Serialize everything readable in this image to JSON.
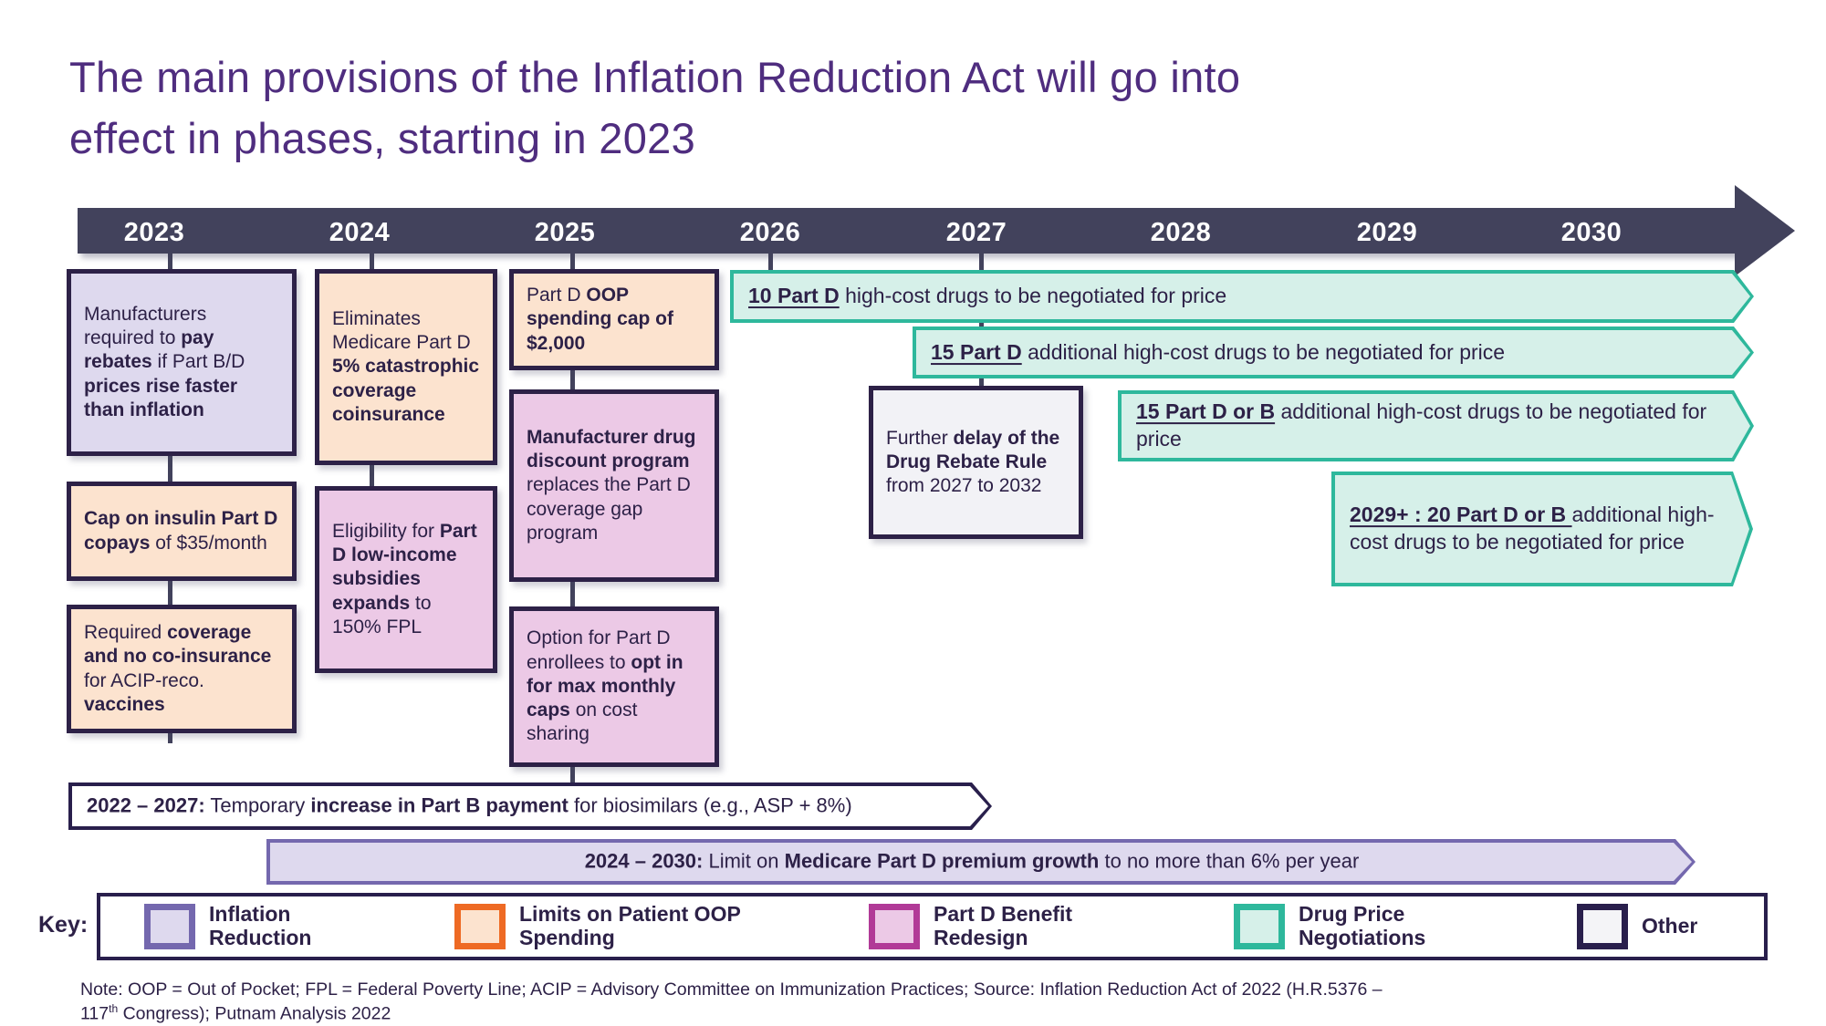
{
  "slide": {
    "title": "The main provisions of the Inflation Reduction Act will go into effect in phases, starting in 2023"
  },
  "timeline": {
    "years": [
      "2023",
      "2024",
      "2025",
      "2026",
      "2027",
      "2028",
      "2029",
      "2030"
    ]
  },
  "boxes": {
    "rebates": {
      "category": "Inflation Reduction",
      "text": [
        {
          "t": "Manufacturers required to "
        },
        {
          "t": "pay rebates",
          "s": "b"
        },
        {
          "t": " if Part B/D "
        },
        {
          "t": "prices rise faster than inflation",
          "s": "b"
        }
      ]
    },
    "insulin": {
      "category": "Limits on Patient OOP Spending",
      "text": [
        {
          "t": "Cap on insulin Part D copays",
          "s": "b"
        },
        {
          "t": " of $35/month"
        }
      ]
    },
    "vaccines": {
      "category": "Limits on Patient OOP Spending",
      "text": [
        {
          "t": "Required "
        },
        {
          "t": "coverage and no co-insurance",
          "s": "b"
        },
        {
          "t": " for ACIP-reco. "
        },
        {
          "t": "vaccines",
          "s": "b"
        }
      ]
    },
    "catastrophic": {
      "category": "Limits on Patient OOP Spending",
      "text": [
        {
          "t": "Eliminates Medicare Part D "
        },
        {
          "t": "5% catastrophic coverage coinsurance",
          "s": "b"
        }
      ]
    },
    "low_income": {
      "category": "Part D Benefit Redesign",
      "text": [
        {
          "t": "Eligibility for "
        },
        {
          "t": "Part D low-income subsidies expands",
          "s": "b"
        },
        {
          "t": " to 150% FPL"
        }
      ]
    },
    "oop_cap": {
      "category": "Limits on Patient OOP Spending",
      "text": [
        {
          "t": "Part D "
        },
        {
          "t": "OOP spending cap of $2,000",
          "s": "b"
        }
      ]
    },
    "discount": {
      "category": "Part D Benefit Redesign",
      "text": [
        {
          "t": "Manufacturer drug discount program",
          "s": "b"
        },
        {
          "t": " replaces the Part D coverage gap program"
        }
      ]
    },
    "opt_in": {
      "category": "Part D Benefit Redesign",
      "text": [
        {
          "t": "Option for Part D enrollees to "
        },
        {
          "t": "opt in for max monthly caps",
          "s": "b"
        },
        {
          "t": " on cost sharing"
        }
      ]
    },
    "rebate_delay": {
      "category": "Other",
      "text": [
        {
          "t": "Further "
        },
        {
          "t": "delay of the Drug Rebate Rule",
          "s": "b"
        },
        {
          "t": " from 2027 to 2032"
        }
      ]
    }
  },
  "arrows": {
    "ten_part_d": {
      "category": "Drug Price Negotiations",
      "text": [
        {
          "t": "10 Part D",
          "s": "bu"
        },
        {
          "t": " high-cost drugs to be negotiated for price"
        }
      ]
    },
    "fifteen_part_d": {
      "category": "Drug Price Negotiations",
      "text": [
        {
          "t": "15 Part D",
          "s": "bu"
        },
        {
          "t": " additional high-cost drugs to be negotiated for price"
        }
      ]
    },
    "fifteen_part_d_or_b": {
      "category": "Drug Price Negotiations",
      "text": [
        {
          "t": "15 Part D or B",
          "s": "bu"
        },
        {
          "t": " additional high-cost drugs to be negotiated for price"
        }
      ]
    },
    "twenty_part_d_or_b_2029": {
      "category": "Drug Price Negotiations",
      "text": [
        {
          "t": "2029+ : 20 Part D or B ",
          "s": "bu"
        },
        {
          "t": "additional high-cost drugs to be negotiated for price"
        }
      ]
    }
  },
  "banners": {
    "biosimilars": {
      "category": "Other",
      "text": [
        {
          "t": "2022 – 2027:",
          "s": "b"
        },
        {
          "t": " Temporary "
        },
        {
          "t": "increase in Part B payment",
          "s": "b"
        },
        {
          "t": " for biosimilars (e.g., ASP + 8%)"
        }
      ]
    },
    "premium_growth": {
      "category": "Inflation Reduction",
      "text": [
        {
          "t": "2024 – 2030:",
          "s": "b"
        },
        {
          "t": " Limit on "
        },
        {
          "t": "Medicare Part D premium growth",
          "s": "b"
        },
        {
          "t": " to no more than 6% per year"
        }
      ]
    }
  },
  "legend": {
    "label": "Key:",
    "items": [
      {
        "label": "Inflation Reduction",
        "border": "#7468ae",
        "fill": "#ded9ee"
      },
      {
        "label": "Limits on Patient OOP Spending",
        "border": "#ee6a24",
        "fill": "#fce3cf"
      },
      {
        "label": "Part D Benefit Redesign",
        "border": "#b13a97",
        "fill": "#ecc9e6"
      },
      {
        "label": "Drug Price Negotiations",
        "border": "#2eb89c",
        "fill": "#d6f0e9"
      },
      {
        "label": "Other",
        "border": "#291f4c",
        "fill": "#f4f4f7"
      }
    ]
  },
  "note": {
    "text": [
      {
        "t": "Note: OOP = Out of Pocket; FPL = Federal Poverty Line; ACIP = Advisory Committee on Immunization Practices; Source: Inflation Reduction Act of 2022 (H.R.5376 – 117"
      },
      {
        "t": "th",
        "s": "sup"
      },
      {
        "t": " Congress); Putnam Analysis 2022"
      }
    ]
  },
  "colors": {
    "title_text": "#4f2d7f",
    "body_text": "#2d2147",
    "timeline_bar": "#42425c",
    "inflation_reduction_border": "#7468ae",
    "inflation_reduction_fill": "#ded9ee",
    "oop_border": "#ee6a24",
    "oop_fill": "#fce3cf",
    "part_d_border": "#b13a97",
    "part_d_fill": "#ecc9e6",
    "negotiation_border": "#2eb89c",
    "negotiation_fill": "#d6f0e9",
    "other_border": "#291f4c"
  }
}
